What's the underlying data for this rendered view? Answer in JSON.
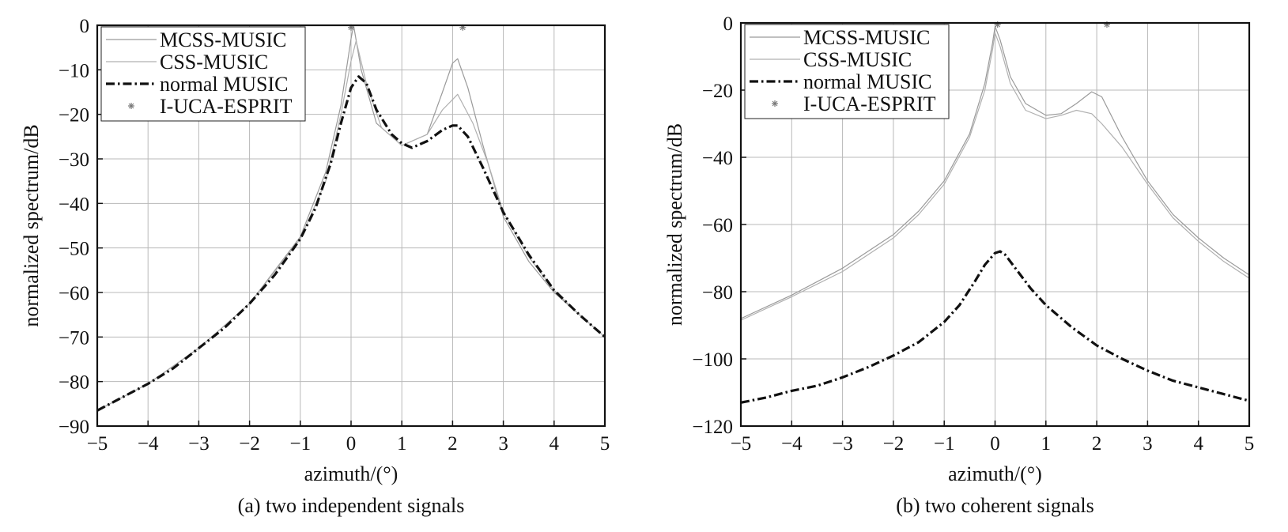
{
  "chart_data": [
    {
      "type": "line",
      "caption": "(a) two independent signals",
      "xlabel": "azimuth/(°)",
      "ylabel": "normalized spectrum/dB",
      "xlim": [
        -5,
        5
      ],
      "ylim": [
        -90,
        0
      ],
      "xticks": [
        -5,
        -4,
        -3,
        -2,
        -1,
        0,
        1,
        2,
        3,
        4,
        5
      ],
      "yticks": [
        0,
        -10,
        -20,
        -30,
        -40,
        -50,
        -60,
        -70,
        -80,
        -90
      ],
      "xtick_labels": [
        "−5",
        "−4",
        "−3",
        "−2",
        "−1",
        "0",
        "1",
        "2",
        "3",
        "4",
        "5"
      ],
      "ytick_labels": [
        "0",
        "−10",
        "−20",
        "−30",
        "−40",
        "−50",
        "−60",
        "−70",
        "−80",
        "−90"
      ],
      "grid": true,
      "legend_position": "top-left",
      "series": [
        {
          "name": "MCSS-MUSIC",
          "style": "solid-thin",
          "color": "#9a9a9a",
          "x": [
            -5,
            -4,
            -3,
            -2,
            -1,
            -0.5,
            -0.2,
            0,
            0.05,
            0.2,
            0.5,
            1,
            1.5,
            1.8,
            2,
            2.1,
            2.3,
            2.6,
            3,
            3.5,
            4,
            4.5,
            5
          ],
          "y": [
            -86.5,
            -80.5,
            -72.5,
            -62.5,
            -47.5,
            -33,
            -18,
            -3,
            0,
            -10,
            -22,
            -27,
            -24.5,
            -15,
            -8.5,
            -7.5,
            -14,
            -27,
            -43,
            -53,
            -60,
            -65,
            -70
          ]
        },
        {
          "name": "CSS-MUSIC",
          "style": "solid-thin",
          "color": "#b0b0b0",
          "x": [
            -5,
            -4,
            -3,
            -2,
            -1,
            -0.5,
            -0.2,
            0,
            0.1,
            0.3,
            0.6,
            1,
            1.5,
            1.8,
            2.1,
            2.4,
            2.7,
            3,
            3.5,
            4,
            4.5,
            5
          ],
          "y": [
            -86.5,
            -80.5,
            -72.5,
            -62.5,
            -48,
            -35,
            -20,
            -8,
            -3.5,
            -13,
            -23,
            -27,
            -24.5,
            -19,
            -15.5,
            -22,
            -31,
            -42,
            -52,
            -59.5,
            -65,
            -70
          ]
        },
        {
          "name": "normal MUSIC",
          "style": "dash-dot-thick",
          "color": "#111111",
          "x": [
            -5,
            -4.5,
            -4,
            -3.5,
            -3,
            -2.5,
            -2,
            -1.5,
            -1,
            -0.7,
            -0.4,
            -0.2,
            0,
            0.15,
            0.3,
            0.5,
            0.8,
            1,
            1.2,
            1.5,
            1.8,
            2,
            2.1,
            2.3,
            2.6,
            3,
            3.5,
            4,
            4.5,
            5
          ],
          "y": [
            -86.5,
            -83.5,
            -80.5,
            -77,
            -72.5,
            -68,
            -62.5,
            -56,
            -48,
            -41,
            -31,
            -22,
            -14,
            -11.5,
            -13,
            -19,
            -24.5,
            -26.5,
            -27.5,
            -26,
            -23.5,
            -22.5,
            -22.5,
            -25,
            -32,
            -42,
            -51.5,
            -59.5,
            -65,
            -70
          ]
        },
        {
          "name": "I-UCA-ESPRIT",
          "style": "markers",
          "color": "#777777",
          "x": [
            0,
            2.2
          ],
          "y": [
            -0.5,
            -0.5
          ]
        }
      ]
    },
    {
      "type": "line",
      "caption": "(b) two coherent signals",
      "xlabel": "azimuth/(°)",
      "ylabel": "normalized spectrum/dB",
      "xlim": [
        -5,
        5
      ],
      "ylim": [
        -120,
        0
      ],
      "xticks": [
        -5,
        -4,
        -3,
        -2,
        -1,
        0,
        1,
        2,
        3,
        4,
        5
      ],
      "yticks": [
        0,
        -20,
        -40,
        -60,
        -80,
        -100,
        -120
      ],
      "xtick_labels": [
        "−5",
        "−4",
        "−3",
        "−2",
        "−1",
        "0",
        "1",
        "2",
        "3",
        "4",
        "5"
      ],
      "ytick_labels": [
        "0",
        "−20",
        "−40",
        "−60",
        "−80",
        "−100",
        "−120"
      ],
      "grid": true,
      "legend_position": "top-left",
      "series": [
        {
          "name": "MCSS-MUSIC",
          "style": "solid-thin",
          "color": "#9a9a9a",
          "x": [
            -5,
            -4,
            -3,
            -2,
            -1.5,
            -1,
            -0.5,
            -0.2,
            -0.05,
            0,
            0.1,
            0.3,
            0.6,
            1,
            1.3,
            1.6,
            1.9,
            2.1,
            2.5,
            3,
            3.5,
            4,
            4.5,
            5
          ],
          "y": [
            -88,
            -81,
            -73,
            -63,
            -56,
            -47,
            -33,
            -18,
            -6,
            -1,
            -5,
            -16,
            -24,
            -27.5,
            -27,
            -24,
            -20.5,
            -22,
            -34,
            -47,
            -57,
            -64,
            -70,
            -75
          ]
        },
        {
          "name": "CSS-MUSIC",
          "style": "solid-thin",
          "color": "#b0b0b0",
          "x": [
            -5,
            -4,
            -3,
            -2,
            -1.5,
            -1,
            -0.5,
            -0.2,
            -0.05,
            0,
            0.1,
            0.3,
            0.6,
            1,
            1.3,
            1.6,
            1.9,
            2.1,
            2.5,
            3,
            3.5,
            4,
            4.5,
            5
          ],
          "y": [
            -88.5,
            -81.5,
            -74,
            -64,
            -57,
            -48,
            -34,
            -20,
            -8,
            -3,
            -7,
            -18,
            -26,
            -28.5,
            -27.5,
            -26,
            -27,
            -30,
            -37,
            -48,
            -58,
            -65,
            -71,
            -76
          ]
        },
        {
          "name": "normal MUSIC",
          "style": "dash-dot-thick",
          "color": "#111111",
          "x": [
            -5,
            -4.5,
            -4,
            -3.5,
            -3,
            -2.5,
            -2,
            -1.5,
            -1,
            -0.7,
            -0.4,
            -0.2,
            0,
            0.1,
            0.2,
            0.4,
            0.7,
            1,
            1.5,
            2,
            2.5,
            3,
            3.5,
            4,
            4.5,
            5
          ],
          "y": [
            -113,
            -111.5,
            -109.5,
            -108,
            -105.5,
            -102.5,
            -99,
            -95,
            -89,
            -84,
            -77,
            -72,
            -68.5,
            -68,
            -69,
            -73,
            -79,
            -84,
            -90.5,
            -96,
            -100,
            -103.5,
            -106.5,
            -108.5,
            -110.5,
            -112.5
          ]
        },
        {
          "name": "I-UCA-ESPRIT",
          "style": "markers",
          "color": "#777777",
          "x": [
            0.05,
            2.2
          ],
          "y": [
            -0.5,
            -0.5
          ]
        }
      ]
    }
  ]
}
